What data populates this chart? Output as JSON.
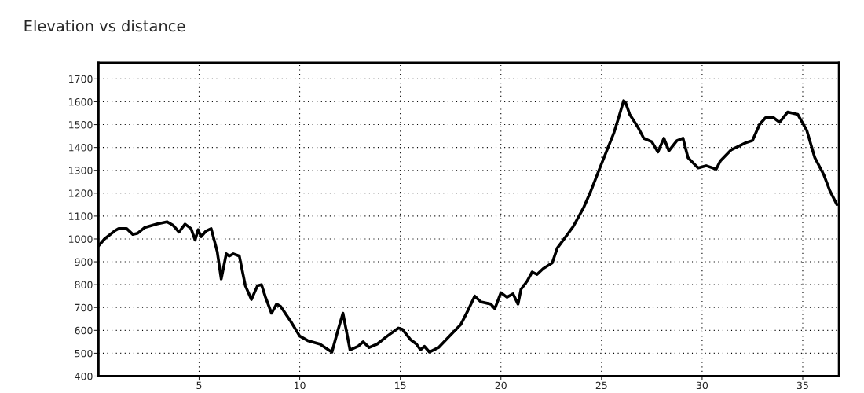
{
  "chart_data": {
    "type": "line",
    "title": "Elevation vs distance",
    "x": [
      0,
      0.3,
      0.8,
      1.0,
      1.4,
      1.7,
      1.95,
      2.3,
      2.9,
      3.4,
      3.7,
      4.0,
      4.3,
      4.6,
      4.8,
      4.95,
      5.1,
      5.35,
      5.6,
      5.9,
      6.1,
      6.35,
      6.5,
      6.7,
      7.0,
      7.3,
      7.6,
      7.9,
      8.1,
      8.3,
      8.6,
      8.85,
      9.05,
      9.55,
      10.0,
      10.4,
      11.0,
      11.6,
      11.9,
      12.15,
      12.5,
      12.9,
      13.15,
      13.45,
      13.85,
      14.35,
      14.9,
      15.1,
      15.5,
      15.8,
      16.0,
      16.2,
      16.45,
      16.9,
      17.45,
      18.0,
      18.35,
      18.7,
      19.0,
      19.5,
      19.7,
      20.0,
      20.3,
      20.6,
      20.85,
      21.0,
      21.3,
      21.55,
      21.8,
      22.1,
      22.55,
      22.8,
      23.1,
      23.6,
      24.1,
      24.45,
      24.85,
      25.3,
      25.6,
      25.85,
      26.1,
      26.2,
      26.4,
      26.8,
      27.1,
      27.5,
      27.8,
      28.1,
      28.35,
      28.75,
      29.05,
      29.3,
      29.8,
      30.2,
      30.7,
      30.9,
      31.45,
      32.15,
      32.5,
      32.85,
      33.15,
      33.55,
      33.85,
      34.25,
      34.75,
      35.2,
      35.6,
      36.05,
      36.35,
      36.7
    ],
    "series": [
      {
        "color": "#000000",
        "values": [
          970,
          1000,
          1035,
          1045,
          1045,
          1020,
          1025,
          1050,
          1065,
          1075,
          1060,
          1030,
          1065,
          1045,
          995,
          1040,
          1010,
          1035,
          1045,
          945,
          825,
          935,
          925,
          935,
          925,
          795,
          735,
          795,
          800,
          745,
          675,
          715,
          705,
          640,
          575,
          555,
          540,
          505,
          600,
          675,
          515,
          530,
          550,
          525,
          540,
          575,
          610,
          605,
          560,
          540,
          515,
          530,
          505,
          525,
          575,
          625,
          685,
          750,
          725,
          715,
          695,
          765,
          745,
          760,
          715,
          780,
          815,
          855,
          845,
          870,
          895,
          960,
          995,
          1055,
          1135,
          1205,
          1295,
          1395,
          1460,
          1530,
          1605,
          1595,
          1545,
          1490,
          1440,
          1425,
          1380,
          1440,
          1385,
          1430,
          1440,
          1355,
          1310,
          1320,
          1305,
          1340,
          1390,
          1420,
          1430,
          1500,
          1530,
          1530,
          1510,
          1555,
          1545,
          1475,
          1355,
          1280,
          1210,
          1150
        ]
      }
    ],
    "xlim": [
      0,
      36.8
    ],
    "ylim": [
      400,
      1770
    ],
    "xticks": [
      5,
      10,
      15,
      20,
      25,
      30,
      35
    ],
    "yticks": [
      400,
      500,
      600,
      700,
      800,
      900,
      1000,
      1100,
      1200,
      1300,
      1400,
      1500,
      1600,
      1700
    ],
    "grid": true,
    "marker": "none",
    "line_style": "solid"
  }
}
